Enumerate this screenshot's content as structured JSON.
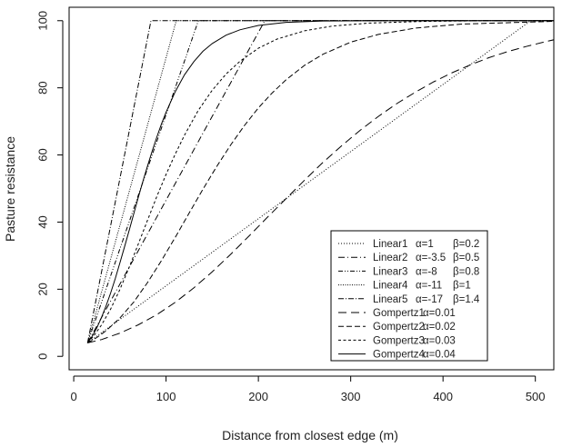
{
  "chart_data": {
    "type": "line",
    "xlabel": "Distance from closest edge (m)",
    "ylabel": "Pasture resistance",
    "xlim": [
      -5,
      520
    ],
    "ylim": [
      -4,
      104
    ],
    "xticks": [
      0,
      100,
      200,
      300,
      400,
      500
    ],
    "yticks": [
      0,
      20,
      40,
      60,
      80,
      100
    ],
    "grid": false,
    "legend_position": "bottom-right",
    "legend": [
      {
        "name": "Linear1",
        "params": "α=1",
        "beta": "β=0.2"
      },
      {
        "name": "Linear2",
        "params": "α=-3.5",
        "beta": "β=0.5"
      },
      {
        "name": "Linear3",
        "params": "α=-8",
        "beta": "β=0.8"
      },
      {
        "name": "Linear4",
        "params": "α=-11",
        "beta": "β=1"
      },
      {
        "name": "Linear5",
        "params": "α=-17",
        "beta": "β=1.4"
      },
      {
        "name": "Gompertz1",
        "params": "α=0.01",
        "beta": ""
      },
      {
        "name": "Gompertz2",
        "params": "α=0.02",
        "beta": ""
      },
      {
        "name": "Gompertz3",
        "params": "α=0.03",
        "beta": ""
      },
      {
        "name": "Gompertz4",
        "params": "α=0.04",
        "beta": ""
      }
    ],
    "series": [
      {
        "name": "Linear1",
        "dash": "1,2",
        "x": [
          15,
          495,
          520
        ],
        "y": [
          4,
          100,
          100
        ]
      },
      {
        "name": "Linear2",
        "dash": "7,3,1,3",
        "x": [
          15,
          207,
          520
        ],
        "y": [
          4,
          100,
          100
        ]
      },
      {
        "name": "Linear3",
        "dash": "5,2,1,2,1,2",
        "x": [
          15,
          135,
          520
        ],
        "y": [
          4,
          100,
          100
        ]
      },
      {
        "name": "Linear4",
        "dash": "1,1.5",
        "x": [
          15,
          111,
          520
        ],
        "y": [
          4,
          100,
          100
        ]
      },
      {
        "name": "Linear5",
        "dash": "6,2,1,2",
        "x": [
          15,
          83.6,
          520
        ],
        "y": [
          4,
          100,
          100
        ]
      },
      {
        "name": "Gompertz1",
        "dash": "9,5",
        "x": [
          15,
          30,
          50,
          70,
          90,
          110,
          130,
          150,
          170,
          190,
          210,
          230,
          250,
          270,
          290,
          310,
          330,
          350,
          370,
          390,
          410,
          430,
          450,
          470,
          490,
          510,
          520
        ],
        "y": [
          4.0,
          5.0,
          6.9,
          9.4,
          12.4,
          16.1,
          20.4,
          25.2,
          30.4,
          35.9,
          41.5,
          47.0,
          52.5,
          57.8,
          62.7,
          67.3,
          71.5,
          75.3,
          78.7,
          81.8,
          84.5,
          86.9,
          89.0,
          90.8,
          92.3,
          93.7,
          94.3
        ]
      },
      {
        "name": "Gompertz2",
        "dash": "6,3",
        "x": [
          15,
          25,
          35,
          50,
          65,
          80,
          95,
          110,
          125,
          140,
          155,
          170,
          185,
          200,
          215,
          230,
          250,
          270,
          300,
          330,
          370,
          420,
          520
        ],
        "y": [
          4.0,
          5.6,
          7.6,
          11.4,
          16.2,
          22.0,
          28.5,
          35.5,
          42.7,
          49.8,
          56.6,
          63.0,
          68.8,
          74.0,
          78.5,
          82.4,
          86.7,
          90.0,
          93.6,
          95.9,
          97.8,
          99.0,
          99.8
        ]
      },
      {
        "name": "Gompertz3",
        "dash": "3,2.5",
        "x": [
          15,
          22,
          30,
          40,
          50,
          60,
          70,
          80,
          90,
          100,
          110,
          120,
          135,
          150,
          165,
          180,
          200,
          220,
          250,
          280,
          320,
          380,
          450,
          520
        ],
        "y": [
          4.0,
          6.2,
          9.3,
          14.1,
          19.9,
          26.5,
          33.5,
          40.6,
          47.6,
          54.2,
          60.3,
          65.9,
          73.3,
          79.3,
          84.1,
          87.9,
          91.8,
          94.5,
          97.0,
          98.4,
          99.3,
          99.8,
          100.0,
          100.0
        ]
      },
      {
        "name": "Gompertz4",
        "dash": "",
        "x": [
          15,
          20,
          25,
          30,
          35,
          40,
          45,
          50,
          55,
          60,
          65,
          70,
          75,
          80,
          85,
          90,
          95,
          100,
          110,
          120,
          130,
          140,
          150,
          165,
          180,
          200,
          230,
          270,
          320,
          400,
          520
        ],
        "y": [
          4.0,
          6.0,
          8.5,
          11.5,
          15.0,
          18.9,
          23.2,
          27.8,
          32.6,
          37.5,
          42.5,
          47.4,
          52.2,
          56.8,
          61.2,
          65.3,
          69.2,
          72.7,
          78.9,
          83.9,
          87.8,
          90.9,
          93.2,
          95.7,
          97.3,
          98.6,
          99.5,
          99.9,
          100.0,
          100.0,
          100.0
        ]
      }
    ]
  }
}
